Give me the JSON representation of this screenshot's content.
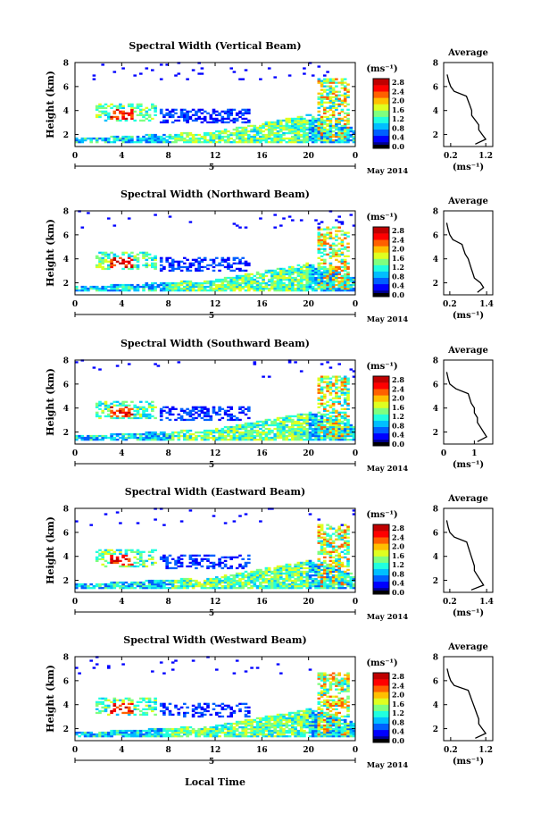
{
  "figure": {
    "xlabel": "Local Time",
    "date_label": "May 2014",
    "day_label": "5",
    "colorbar_unit": "(ms⁻¹)",
    "avg_title": "Average",
    "avg_xlabel": "(ms⁻¹)",
    "ylabel": "Height (km)"
  },
  "colors": {
    "colormap": [
      "#00008f",
      "#0000ff",
      "#0060ff",
      "#00bfff",
      "#20ffdf",
      "#7fff7f",
      "#dfff20",
      "#ffbf00",
      "#ff6000",
      "#ff0000",
      "#bf0000"
    ],
    "axis": "#000000"
  },
  "chart_data": [
    {
      "type": "heatmap",
      "title": "Spectral Width (Vertical Beam)",
      "x_ticks": [
        "0",
        "4",
        "8",
        "12",
        "16",
        "20",
        "0"
      ],
      "xlim": [
        0,
        24
      ],
      "y_ticks": [
        "2",
        "4",
        "6",
        "8"
      ],
      "ylim": [
        1,
        8
      ],
      "colorbar_ticks": [
        "2.8",
        "2.4",
        "2.0",
        "1.6",
        "1.2",
        "0.8",
        "0.4",
        "0.0"
      ],
      "colorbar_range": [
        0,
        2.8
      ],
      "profile": {
        "title": "Average",
        "x_ticks": [
          "0.2",
          "1.2"
        ],
        "xlim": [
          0,
          1.4
        ],
        "y_ticks": [
          "2",
          "4",
          "6",
          "8"
        ],
        "ylim": [
          1,
          8
        ],
        "heights": [
          1.2,
          1.6,
          2.0,
          2.4,
          2.8,
          3.2,
          3.6,
          4.0,
          4.4,
          4.8,
          5.2,
          5.6,
          6.0,
          6.4,
          7.0
        ],
        "values": [
          0.9,
          1.2,
          1.1,
          1.0,
          1.0,
          0.9,
          0.8,
          0.8,
          0.75,
          0.7,
          0.65,
          0.3,
          0.2,
          0.15,
          0.1
        ]
      }
    },
    {
      "type": "heatmap",
      "title": "Spectral Width (Northward Beam)",
      "x_ticks": [
        "0",
        "4",
        "8",
        "12",
        "16",
        "20",
        "0"
      ],
      "xlim": [
        0,
        24
      ],
      "y_ticks": [
        "2",
        "4",
        "6",
        "8"
      ],
      "ylim": [
        1,
        8
      ],
      "colorbar_ticks": [
        "2.8",
        "2.4",
        "2.0",
        "1.6",
        "1.2",
        "0.8",
        "0.4",
        "0.0"
      ],
      "colorbar_range": [
        0,
        2.8
      ],
      "profile": {
        "title": "Average",
        "x_ticks": [
          "0.2",
          "1.4"
        ],
        "xlim": [
          0,
          1.6
        ],
        "y_ticks": [
          "2",
          "4",
          "6",
          "8"
        ],
        "ylim": [
          1,
          8
        ],
        "heights": [
          1.2,
          1.6,
          2.0,
          2.4,
          2.8,
          3.2,
          3.6,
          4.0,
          4.4,
          4.8,
          5.2,
          5.6,
          6.0,
          6.4,
          7.0
        ],
        "values": [
          1.1,
          1.3,
          1.2,
          1.0,
          0.95,
          0.9,
          0.85,
          0.8,
          0.7,
          0.65,
          0.6,
          0.3,
          0.2,
          0.15,
          0.1
        ]
      }
    },
    {
      "type": "heatmap",
      "title": "Spectral Width (Southward Beam)",
      "x_ticks": [
        "0",
        "4",
        "8",
        "12",
        "16",
        "20",
        "0"
      ],
      "xlim": [
        0,
        24
      ],
      "y_ticks": [
        "2",
        "4",
        "6",
        "8"
      ],
      "ylim": [
        1,
        8
      ],
      "colorbar_ticks": [
        "2.8",
        "2.4",
        "2.0",
        "1.6",
        "1.2",
        "0.8",
        "0.4",
        "0.0"
      ],
      "colorbar_range": [
        0,
        2.8
      ],
      "profile": {
        "title": "Average",
        "x_ticks": [
          "0",
          "1"
        ],
        "xlim": [
          0,
          1.6
        ],
        "y_ticks": [
          "2",
          "4",
          "6",
          "8"
        ],
        "ylim": [
          1,
          8
        ],
        "heights": [
          1.2,
          1.6,
          2.0,
          2.4,
          2.8,
          3.2,
          3.6,
          4.0,
          4.4,
          4.8,
          5.2,
          5.6,
          6.0,
          6.4,
          7.0
        ],
        "values": [
          1.1,
          1.4,
          1.3,
          1.2,
          1.1,
          1.1,
          1.0,
          1.0,
          0.9,
          0.85,
          0.8,
          0.4,
          0.2,
          0.15,
          0.1
        ]
      }
    },
    {
      "type": "heatmap",
      "title": "Spectral Width (Eastward Beam)",
      "x_ticks": [
        "0",
        "4",
        "8",
        "12",
        "16",
        "20",
        "0"
      ],
      "xlim": [
        0,
        24
      ],
      "y_ticks": [
        "2",
        "4",
        "6",
        "8"
      ],
      "ylim": [
        1,
        8
      ],
      "colorbar_ticks": [
        "2.8",
        "2.4",
        "2.0",
        "1.6",
        "1.2",
        "0.8",
        "0.4",
        "0.0"
      ],
      "colorbar_range": [
        0,
        2.8
      ],
      "profile": {
        "title": "Average",
        "x_ticks": [
          "0.2",
          "1.4"
        ],
        "xlim": [
          0,
          1.6
        ],
        "y_ticks": [
          "2",
          "4",
          "6",
          "8"
        ],
        "ylim": [
          1,
          8
        ],
        "heights": [
          1.2,
          1.6,
          2.0,
          2.4,
          2.8,
          3.2,
          3.6,
          4.0,
          4.4,
          4.8,
          5.2,
          5.6,
          6.0,
          6.4,
          7.0
        ],
        "values": [
          0.9,
          1.3,
          1.2,
          1.1,
          1.0,
          1.0,
          0.95,
          0.9,
          0.85,
          0.8,
          0.75,
          0.35,
          0.2,
          0.15,
          0.1
        ]
      }
    },
    {
      "type": "heatmap",
      "title": "Spectral Width (Westward Beam)",
      "x_ticks": [
        "0",
        "4",
        "8",
        "12",
        "16",
        "20",
        "0"
      ],
      "xlim": [
        0,
        24
      ],
      "y_ticks": [
        "2",
        "4",
        "6",
        "8"
      ],
      "ylim": [
        1,
        8
      ],
      "colorbar_ticks": [
        "2.8",
        "2.4",
        "2.0",
        "1.6",
        "1.2",
        "0.8",
        "0.4",
        "0.0"
      ],
      "colorbar_range": [
        0,
        2.8
      ],
      "profile": {
        "title": "Average",
        "x_ticks": [
          "0.2",
          "1.2"
        ],
        "xlim": [
          0,
          1.4
        ],
        "y_ticks": [
          "2",
          "4",
          "6",
          "8"
        ],
        "ylim": [
          1,
          8
        ],
        "heights": [
          1.2,
          1.6,
          2.0,
          2.4,
          2.8,
          3.2,
          3.6,
          4.0,
          4.4,
          4.8,
          5.2,
          5.6,
          6.0,
          6.4,
          7.0
        ],
        "values": [
          0.9,
          1.2,
          1.1,
          1.0,
          1.0,
          0.95,
          0.9,
          0.85,
          0.8,
          0.75,
          0.7,
          0.3,
          0.2,
          0.15,
          0.1
        ]
      }
    }
  ]
}
